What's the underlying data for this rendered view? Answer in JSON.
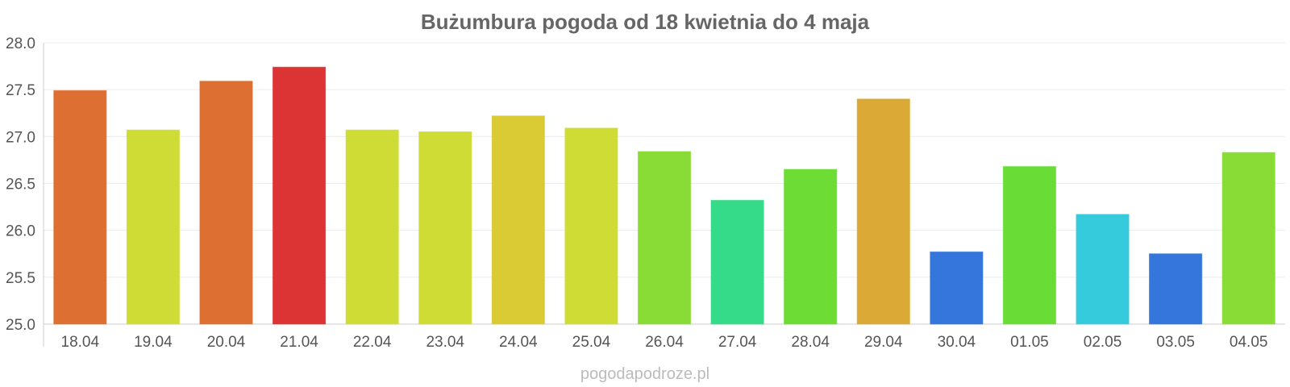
{
  "chart_data": {
    "type": "bar",
    "title": "Bużumbura pogoda od 18 kwietnia do 4 maja",
    "categories": [
      "18.04",
      "19.04",
      "20.04",
      "21.04",
      "22.04",
      "23.04",
      "24.04",
      "25.04",
      "26.04",
      "27.04",
      "28.04",
      "29.04",
      "30.04",
      "01.05",
      "02.05",
      "03.05",
      "04.05"
    ],
    "values": [
      27.49,
      27.07,
      27.59,
      27.74,
      27.07,
      27.05,
      27.22,
      27.09,
      26.84,
      26.32,
      26.65,
      27.4,
      25.77,
      26.68,
      26.17,
      25.75,
      26.83
    ],
    "colors": [
      "#dd6f32",
      "#cfdc35",
      "#dd6f32",
      "#dc3434",
      "#cfdc35",
      "#cfdc35",
      "#dacb35",
      "#cfdc35",
      "#89dc35",
      "#35db89",
      "#6ddc35",
      "#dba935",
      "#3576dc",
      "#69dc35",
      "#35cbdc",
      "#3576dc",
      "#89dc35"
    ],
    "ylim": [
      25.0,
      28.0
    ],
    "yticks": [
      "25.0",
      "25.5",
      "26.0",
      "26.5",
      "27.0",
      "27.5",
      "28.0"
    ],
    "grid": true,
    "legend": "none",
    "xlabel": "",
    "ylabel": ""
  },
  "watermark": "pogodapodroze.pl"
}
